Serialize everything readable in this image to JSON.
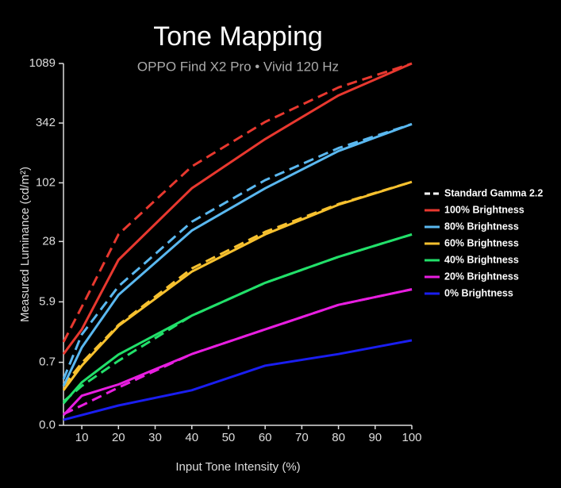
{
  "chart_data": {
    "type": "line",
    "title": "Tone Mapping",
    "subtitle": "OPPO Find X2 Pro • Vivid 120 Hz",
    "x_label": "Input Tone Intensity (%)",
    "y_label": "Measured Luminance (cd/m²)",
    "yscale": "pq",
    "x": [
      5,
      10,
      20,
      40,
      60,
      80,
      100
    ],
    "xlim": [
      5,
      100
    ],
    "xticks": [
      10,
      20,
      30,
      40,
      50,
      60,
      70,
      80,
      90,
      100
    ],
    "ylim": [
      0,
      1089
    ],
    "yticks": [
      {
        "value": 0,
        "label": "0.0"
      },
      0.7,
      5.9,
      28,
      102,
      342,
      1089
    ],
    "reference_name": "Standard Gamma 2.2",
    "reference_color": "#ffffff",
    "legend": "right",
    "series": [
      {
        "name": "100% Brightness",
        "color": "#e8382f",
        "values": [
          1.0,
          2.5,
          18,
          91,
          249,
          588,
          1089
        ],
        "reference": [
          1.6,
          5.1,
          33,
          143,
          350,
          685,
          1089
        ]
      },
      {
        "name": "80% Brightness",
        "color": "#5ab8f0",
        "values": [
          0.2,
          1.3,
          7.2,
          36,
          91,
          196,
          335
        ],
        "reference": [
          0.3,
          2.1,
          9.1,
          44,
          108,
          208,
          335
        ]
      },
      {
        "name": "60% Brightness",
        "color": "#f7c12f",
        "values": [
          0.15,
          0.6,
          2.8,
          13.4,
          33,
          64,
          104
        ],
        "reference": [
          0.2,
          0.68,
          2.9,
          14.5,
          35,
          65,
          104
        ]
      },
      {
        "name": "40% Brightness",
        "color": "#22e06a",
        "values": [
          0.05,
          0.25,
          0.98,
          3.9,
          10,
          19.4,
          33
        ],
        "reference": [
          0.06,
          0.2,
          0.75,
          3.9,
          10,
          19.4,
          33
        ]
      },
      {
        "name": "20% Brightness",
        "color": "#e81ee0",
        "values": [
          0.01,
          0.1,
          0.22,
          1.0,
          2.5,
          5.4,
          8.4
        ],
        "reference": [
          0.012,
          0.04,
          0.18,
          1.0,
          2.5,
          5.4,
          8.4
        ]
      },
      {
        "name": "0% Brightness",
        "color": "#1a1ef0",
        "values": [
          0.003,
          0.01,
          0.04,
          0.15,
          0.6,
          1.0,
          1.7
        ]
      }
    ]
  }
}
